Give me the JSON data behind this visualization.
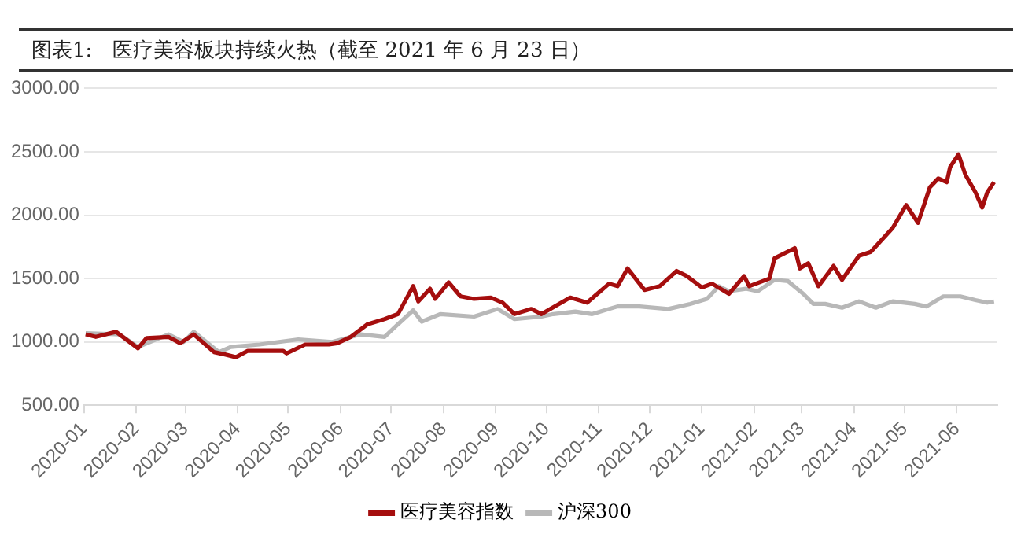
{
  "chart_data": {
    "type": "line",
    "title": "图表1:　医疗美容板块持续火热（截至 2021 年 6 月 23 日）",
    "xlim": [
      "2020-01-01",
      "2021-06-25"
    ],
    "xticks": [
      "2020-01",
      "2020-02",
      "2020-03",
      "2020-04",
      "2020-05",
      "2020-06",
      "2020-07",
      "2020-08",
      "2020-09",
      "2020-10",
      "2020-11",
      "2020-12",
      "2021-01",
      "2021-02",
      "2021-03",
      "2021-04",
      "2021-05",
      "2021-06"
    ],
    "ylim": [
      500,
      3000
    ],
    "yticks": [
      {
        "value": 500,
        "label": "500.00"
      },
      {
        "value": 1000,
        "label": "1000.00"
      },
      {
        "value": 1500,
        "label": "1500.00"
      },
      {
        "value": 2000,
        "label": "2000.00"
      },
      {
        "value": 2500,
        "label": "2500.00"
      },
      {
        "value": 3000,
        "label": "3000.00"
      }
    ],
    "grid": "y",
    "legend": "bottom",
    "marker": "none",
    "line_style": "solid",
    "series": [
      {
        "name": "医疗美容指数",
        "color": "#a50e0e",
        "x": [
          "2020-01-02",
          "2020-01-08",
          "2020-01-20",
          "2020-02-02",
          "2020-02-07",
          "2020-02-20",
          "2020-02-27",
          "2020-03-06",
          "2020-03-18",
          "2020-03-25",
          "2020-03-31",
          "2020-04-07",
          "2020-04-28",
          "2020-04-30",
          "2020-05-11",
          "2020-05-25",
          "2020-05-30",
          "2020-06-07",
          "2020-06-17",
          "2020-06-27",
          "2020-07-05",
          "2020-07-14",
          "2020-07-17",
          "2020-07-24",
          "2020-07-27",
          "2020-08-04",
          "2020-08-11",
          "2020-08-19",
          "2020-08-29",
          "2020-09-05",
          "2020-09-12",
          "2020-09-22",
          "2020-09-28",
          "2020-10-15",
          "2020-10-25",
          "2020-11-07",
          "2020-11-12",
          "2020-11-18",
          "2020-11-28",
          "2020-12-07",
          "2020-12-17",
          "2020-12-23",
          "2021-01-01",
          "2021-01-07",
          "2021-01-17",
          "2021-01-26",
          "2021-01-29",
          "2021-02-10",
          "2021-02-13",
          "2021-02-25",
          "2021-02-28",
          "2021-03-05",
          "2021-03-11",
          "2021-03-20",
          "2021-03-25",
          "2021-04-04",
          "2021-04-11",
          "2021-04-24",
          "2021-05-02",
          "2021-05-09",
          "2021-05-16",
          "2021-05-21",
          "2021-05-26",
          "2021-05-28",
          "2021-06-02",
          "2021-06-06",
          "2021-06-12",
          "2021-06-16",
          "2021-06-19",
          "2021-06-23"
        ],
        "values": [
          1060,
          1040,
          1080,
          950,
          1030,
          1040,
          990,
          1060,
          920,
          900,
          880,
          930,
          930,
          910,
          980,
          980,
          990,
          1040,
          1140,
          1180,
          1220,
          1440,
          1320,
          1420,
          1340,
          1470,
          1360,
          1340,
          1350,
          1310,
          1220,
          1260,
          1220,
          1350,
          1310,
          1460,
          1440,
          1580,
          1410,
          1440,
          1560,
          1520,
          1430,
          1460,
          1380,
          1520,
          1440,
          1500,
          1660,
          1740,
          1580,
          1620,
          1440,
          1600,
          1490,
          1680,
          1710,
          1900,
          2080,
          1940,
          2220,
          2290,
          2260,
          2380,
          2480,
          2320,
          2180,
          2060,
          2180,
          2260
        ]
      },
      {
        "name": "沪深300",
        "color": "#b8b8b8",
        "x": [
          "2020-01-02",
          "2020-01-22",
          "2020-02-02",
          "2020-02-20",
          "2020-02-29",
          "2020-03-06",
          "2020-03-21",
          "2020-03-28",
          "2020-04-14",
          "2020-05-07",
          "2020-05-27",
          "2020-06-13",
          "2020-06-27",
          "2020-07-05",
          "2020-07-14",
          "2020-07-19",
          "2020-07-30",
          "2020-08-19",
          "2020-09-02",
          "2020-09-12",
          "2020-09-28",
          "2020-10-05",
          "2020-10-18",
          "2020-10-28",
          "2020-11-12",
          "2020-11-25",
          "2020-12-12",
          "2020-12-25",
          "2021-01-04",
          "2021-01-11",
          "2021-01-17",
          "2021-01-27",
          "2021-02-03",
          "2021-02-13",
          "2021-02-21",
          "2021-03-02",
          "2021-03-08",
          "2021-03-15",
          "2021-03-25",
          "2021-04-04",
          "2021-04-14",
          "2021-04-24",
          "2021-05-07",
          "2021-05-14",
          "2021-05-24",
          "2021-06-03",
          "2021-06-12",
          "2021-06-19",
          "2021-06-23"
        ],
        "values": [
          1070,
          1060,
          960,
          1060,
          1000,
          1080,
          920,
          960,
          980,
          1020,
          1000,
          1060,
          1040,
          1140,
          1250,
          1160,
          1220,
          1200,
          1260,
          1180,
          1200,
          1220,
          1240,
          1220,
          1280,
          1280,
          1260,
          1300,
          1340,
          1440,
          1400,
          1420,
          1400,
          1490,
          1480,
          1380,
          1300,
          1300,
          1270,
          1320,
          1270,
          1320,
          1300,
          1280,
          1360,
          1360,
          1330,
          1310,
          1320
        ]
      }
    ]
  }
}
